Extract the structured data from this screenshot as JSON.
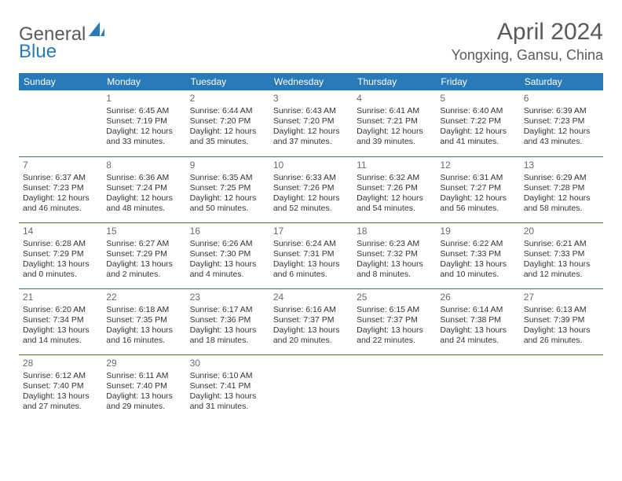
{
  "logo": {
    "general": "General",
    "blue": "Blue"
  },
  "title": "April 2024",
  "location": "Yongxing, Gansu, China",
  "colors": {
    "header_bg": "#2a7ab8",
    "header_text": "#ffffff",
    "rule": "#2a7ab8",
    "body_text": "#333333",
    "title_text": "#5a5a5a",
    "logo_gray": "#5a5a5a",
    "logo_blue": "#2a7ab8",
    "background": "#ffffff"
  },
  "typography": {
    "title_fontsize": 30,
    "location_fontsize": 18,
    "logo_fontsize": 24,
    "dayheader_fontsize": 12,
    "daynum_fontsize": 12,
    "cell_fontsize": 10.5
  },
  "day_headers": [
    "Sunday",
    "Monday",
    "Tuesday",
    "Wednesday",
    "Thursday",
    "Friday",
    "Saturday"
  ],
  "weeks": [
    [
      null,
      {
        "n": "1",
        "sr": "Sunrise: 6:45 AM",
        "ss": "Sunset: 7:19 PM",
        "d1": "Daylight: 12 hours",
        "d2": "and 33 minutes."
      },
      {
        "n": "2",
        "sr": "Sunrise: 6:44 AM",
        "ss": "Sunset: 7:20 PM",
        "d1": "Daylight: 12 hours",
        "d2": "and 35 minutes."
      },
      {
        "n": "3",
        "sr": "Sunrise: 6:43 AM",
        "ss": "Sunset: 7:20 PM",
        "d1": "Daylight: 12 hours",
        "d2": "and 37 minutes."
      },
      {
        "n": "4",
        "sr": "Sunrise: 6:41 AM",
        "ss": "Sunset: 7:21 PM",
        "d1": "Daylight: 12 hours",
        "d2": "and 39 minutes."
      },
      {
        "n": "5",
        "sr": "Sunrise: 6:40 AM",
        "ss": "Sunset: 7:22 PM",
        "d1": "Daylight: 12 hours",
        "d2": "and 41 minutes."
      },
      {
        "n": "6",
        "sr": "Sunrise: 6:39 AM",
        "ss": "Sunset: 7:23 PM",
        "d1": "Daylight: 12 hours",
        "d2": "and 43 minutes."
      }
    ],
    [
      {
        "n": "7",
        "sr": "Sunrise: 6:37 AM",
        "ss": "Sunset: 7:23 PM",
        "d1": "Daylight: 12 hours",
        "d2": "and 46 minutes."
      },
      {
        "n": "8",
        "sr": "Sunrise: 6:36 AM",
        "ss": "Sunset: 7:24 PM",
        "d1": "Daylight: 12 hours",
        "d2": "and 48 minutes."
      },
      {
        "n": "9",
        "sr": "Sunrise: 6:35 AM",
        "ss": "Sunset: 7:25 PM",
        "d1": "Daylight: 12 hours",
        "d2": "and 50 minutes."
      },
      {
        "n": "10",
        "sr": "Sunrise: 6:33 AM",
        "ss": "Sunset: 7:26 PM",
        "d1": "Daylight: 12 hours",
        "d2": "and 52 minutes."
      },
      {
        "n": "11",
        "sr": "Sunrise: 6:32 AM",
        "ss": "Sunset: 7:26 PM",
        "d1": "Daylight: 12 hours",
        "d2": "and 54 minutes."
      },
      {
        "n": "12",
        "sr": "Sunrise: 6:31 AM",
        "ss": "Sunset: 7:27 PM",
        "d1": "Daylight: 12 hours",
        "d2": "and 56 minutes."
      },
      {
        "n": "13",
        "sr": "Sunrise: 6:29 AM",
        "ss": "Sunset: 7:28 PM",
        "d1": "Daylight: 12 hours",
        "d2": "and 58 minutes."
      }
    ],
    [
      {
        "n": "14",
        "sr": "Sunrise: 6:28 AM",
        "ss": "Sunset: 7:29 PM",
        "d1": "Daylight: 13 hours",
        "d2": "and 0 minutes."
      },
      {
        "n": "15",
        "sr": "Sunrise: 6:27 AM",
        "ss": "Sunset: 7:29 PM",
        "d1": "Daylight: 13 hours",
        "d2": "and 2 minutes."
      },
      {
        "n": "16",
        "sr": "Sunrise: 6:26 AM",
        "ss": "Sunset: 7:30 PM",
        "d1": "Daylight: 13 hours",
        "d2": "and 4 minutes."
      },
      {
        "n": "17",
        "sr": "Sunrise: 6:24 AM",
        "ss": "Sunset: 7:31 PM",
        "d1": "Daylight: 13 hours",
        "d2": "and 6 minutes."
      },
      {
        "n": "18",
        "sr": "Sunrise: 6:23 AM",
        "ss": "Sunset: 7:32 PM",
        "d1": "Daylight: 13 hours",
        "d2": "and 8 minutes."
      },
      {
        "n": "19",
        "sr": "Sunrise: 6:22 AM",
        "ss": "Sunset: 7:33 PM",
        "d1": "Daylight: 13 hours",
        "d2": "and 10 minutes."
      },
      {
        "n": "20",
        "sr": "Sunrise: 6:21 AM",
        "ss": "Sunset: 7:33 PM",
        "d1": "Daylight: 13 hours",
        "d2": "and 12 minutes."
      }
    ],
    [
      {
        "n": "21",
        "sr": "Sunrise: 6:20 AM",
        "ss": "Sunset: 7:34 PM",
        "d1": "Daylight: 13 hours",
        "d2": "and 14 minutes."
      },
      {
        "n": "22",
        "sr": "Sunrise: 6:18 AM",
        "ss": "Sunset: 7:35 PM",
        "d1": "Daylight: 13 hours",
        "d2": "and 16 minutes."
      },
      {
        "n": "23",
        "sr": "Sunrise: 6:17 AM",
        "ss": "Sunset: 7:36 PM",
        "d1": "Daylight: 13 hours",
        "d2": "and 18 minutes."
      },
      {
        "n": "24",
        "sr": "Sunrise: 6:16 AM",
        "ss": "Sunset: 7:37 PM",
        "d1": "Daylight: 13 hours",
        "d2": "and 20 minutes."
      },
      {
        "n": "25",
        "sr": "Sunrise: 6:15 AM",
        "ss": "Sunset: 7:37 PM",
        "d1": "Daylight: 13 hours",
        "d2": "and 22 minutes."
      },
      {
        "n": "26",
        "sr": "Sunrise: 6:14 AM",
        "ss": "Sunset: 7:38 PM",
        "d1": "Daylight: 13 hours",
        "d2": "and 24 minutes."
      },
      {
        "n": "27",
        "sr": "Sunrise: 6:13 AM",
        "ss": "Sunset: 7:39 PM",
        "d1": "Daylight: 13 hours",
        "d2": "and 26 minutes."
      }
    ],
    [
      {
        "n": "28",
        "sr": "Sunrise: 6:12 AM",
        "ss": "Sunset: 7:40 PM",
        "d1": "Daylight: 13 hours",
        "d2": "and 27 minutes."
      },
      {
        "n": "29",
        "sr": "Sunrise: 6:11 AM",
        "ss": "Sunset: 7:40 PM",
        "d1": "Daylight: 13 hours",
        "d2": "and 29 minutes."
      },
      {
        "n": "30",
        "sr": "Sunrise: 6:10 AM",
        "ss": "Sunset: 7:41 PM",
        "d1": "Daylight: 13 hours",
        "d2": "and 31 minutes."
      },
      null,
      null,
      null,
      null
    ]
  ]
}
